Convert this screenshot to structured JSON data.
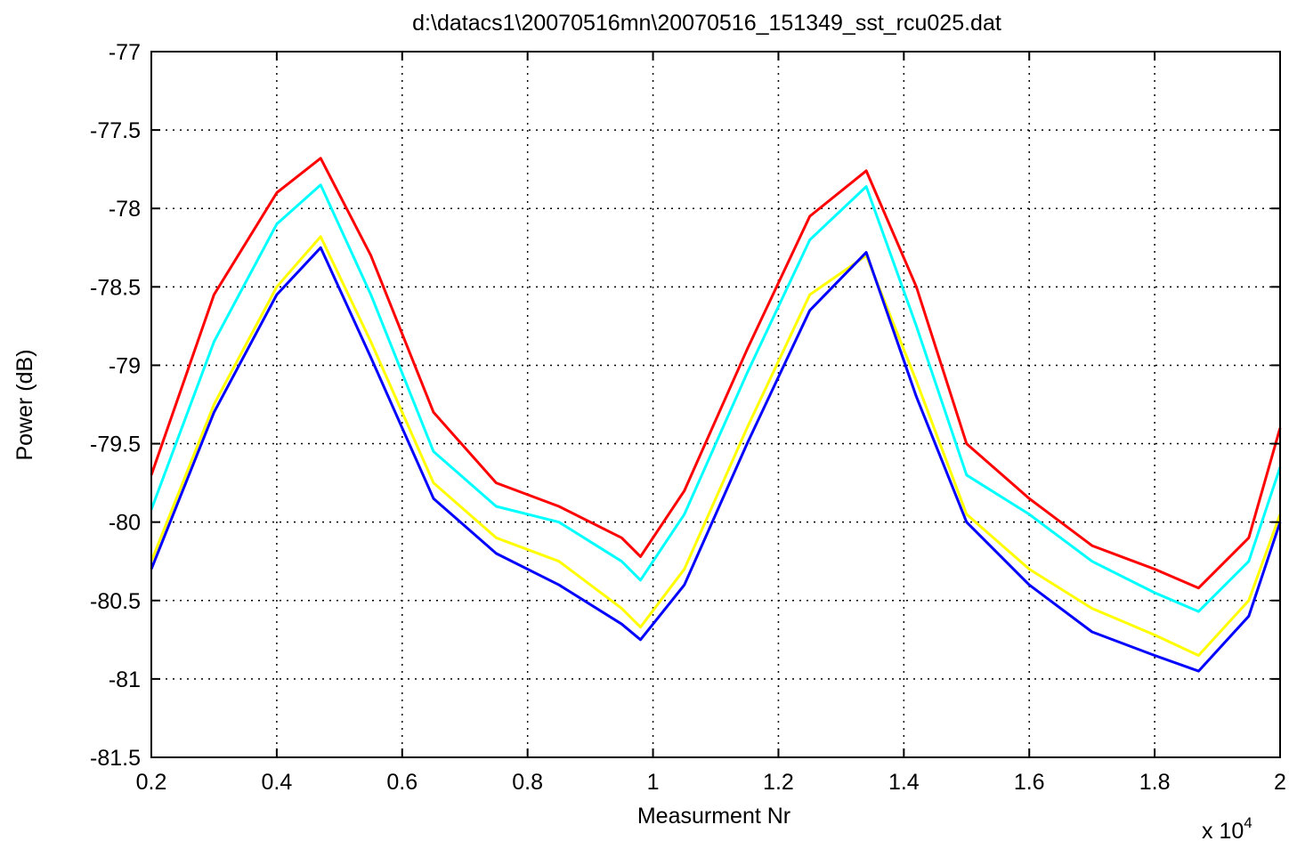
{
  "chart_data": {
    "type": "line",
    "title": "d:\\datacs1\\20070516mn\\20070516_151349_sst_rcu025.dat",
    "xlabel": "Measurment Nr",
    "ylabel": "Power (dB)",
    "x_multiplier_label": "x 10",
    "x_multiplier_exponent": "4",
    "xlim": [
      0.2,
      2.0
    ],
    "ylim": [
      -81.5,
      -77
    ],
    "grid": true,
    "x_ticks": [
      0.2,
      0.4,
      0.6,
      0.8,
      1.0,
      1.2,
      1.4,
      1.6,
      1.8,
      2.0
    ],
    "x_tick_labels": [
      "0.2",
      "0.4",
      "0.6",
      "0.8",
      "1",
      "1.2",
      "1.4",
      "1.6",
      "1.8",
      "2"
    ],
    "y_ticks": [
      -77,
      -77.5,
      -78,
      -78.5,
      -79,
      -79.5,
      -80,
      -80.5,
      -81,
      -81.5
    ],
    "y_tick_labels": [
      "-77",
      "-77.5",
      "-78",
      "-78.5",
      "-79",
      "-79.5",
      "-80",
      "-80.5",
      "-81",
      "-81.5"
    ],
    "series": [
      {
        "color": "#ff0000",
        "x": [
          0.2,
          0.3,
          0.4,
          0.47,
          0.55,
          0.65,
          0.75,
          0.85,
          0.95,
          0.98,
          1.05,
          1.15,
          1.25,
          1.34,
          1.42,
          1.5,
          1.6,
          1.7,
          1.8,
          1.87,
          1.95,
          2.0
        ],
        "y": [
          -79.7,
          -78.55,
          -77.9,
          -77.68,
          -78.3,
          -79.3,
          -79.75,
          -79.9,
          -80.1,
          -80.22,
          -79.8,
          -78.9,
          -78.05,
          -77.76,
          -78.5,
          -79.5,
          -79.85,
          -80.15,
          -80.3,
          -80.42,
          -80.1,
          -79.4
        ]
      },
      {
        "color": "#00ffff",
        "x": [
          0.2,
          0.3,
          0.4,
          0.47,
          0.55,
          0.65,
          0.75,
          0.85,
          0.95,
          0.98,
          1.05,
          1.15,
          1.25,
          1.34,
          1.42,
          1.5,
          1.6,
          1.7,
          1.8,
          1.87,
          1.95,
          2.0
        ],
        "y": [
          -79.92,
          -78.85,
          -78.1,
          -77.85,
          -78.55,
          -79.55,
          -79.9,
          -80.0,
          -80.25,
          -80.37,
          -79.95,
          -79.05,
          -78.2,
          -77.86,
          -78.75,
          -79.7,
          -79.95,
          -80.25,
          -80.45,
          -80.57,
          -80.25,
          -79.65
        ]
      },
      {
        "color": "#ffff00",
        "x": [
          0.2,
          0.3,
          0.4,
          0.47,
          0.55,
          0.65,
          0.75,
          0.85,
          0.95,
          0.98,
          1.05,
          1.15,
          1.25,
          1.34,
          1.42,
          1.5,
          1.6,
          1.7,
          1.8,
          1.87,
          1.95,
          2.0
        ],
        "y": [
          -80.25,
          -79.25,
          -78.5,
          -78.18,
          -78.85,
          -79.75,
          -80.1,
          -80.25,
          -80.55,
          -80.67,
          -80.3,
          -79.4,
          -78.55,
          -78.3,
          -79.1,
          -79.95,
          -80.3,
          -80.55,
          -80.72,
          -80.85,
          -80.5,
          -79.95
        ]
      },
      {
        "color": "#0000ff",
        "x": [
          0.2,
          0.3,
          0.4,
          0.47,
          0.55,
          0.65,
          0.75,
          0.85,
          0.95,
          0.98,
          1.05,
          1.15,
          1.25,
          1.34,
          1.42,
          1.5,
          1.6,
          1.7,
          1.8,
          1.87,
          1.95,
          2.0
        ],
        "y": [
          -80.3,
          -79.3,
          -78.55,
          -78.25,
          -78.95,
          -79.85,
          -80.2,
          -80.4,
          -80.65,
          -80.75,
          -80.4,
          -79.5,
          -78.65,
          -78.28,
          -79.2,
          -80.0,
          -80.4,
          -80.7,
          -80.85,
          -80.95,
          -80.6,
          -80.0
        ]
      }
    ]
  }
}
